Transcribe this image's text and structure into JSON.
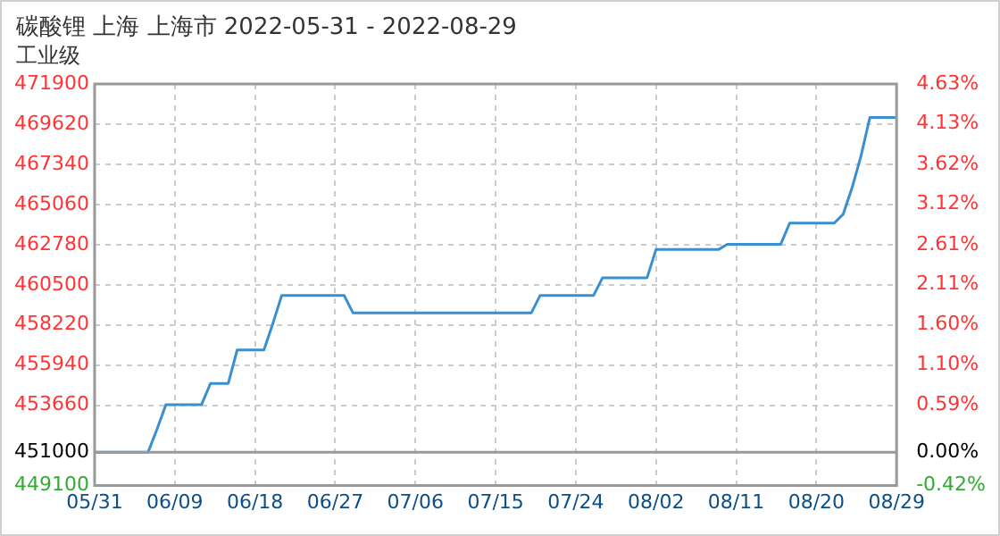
{
  "chart_data": {
    "type": "line",
    "title": "碳酸锂 上海 上海市 2022-05-31 - 2022-08-29",
    "subtitle": "工业级",
    "x": [
      "2022-05-31",
      "2022-06-06",
      "2022-06-07",
      "2022-06-08",
      "2022-06-12",
      "2022-06-13",
      "2022-06-15",
      "2022-06-16",
      "2022-06-19",
      "2022-06-20",
      "2022-06-21",
      "2022-06-28",
      "2022-06-29",
      "2022-07-19",
      "2022-07-20",
      "2022-07-26",
      "2022-07-27",
      "2022-08-01",
      "2022-08-02",
      "2022-08-09",
      "2022-08-10",
      "2022-08-16",
      "2022-08-17",
      "2022-08-22",
      "2022-08-23",
      "2022-08-24",
      "2022-08-25",
      "2022-08-26",
      "2022-08-29"
    ],
    "series": [
      {
        "color": "#3a8fd0",
        "values": [
          451000,
          451000,
          452300,
          453700,
          453700,
          454900,
          454900,
          456800,
          456800,
          458300,
          459900,
          459900,
          458900,
          458900,
          459900,
          459900,
          460900,
          460900,
          462500,
          462500,
          462800,
          462800,
          464000,
          464000,
          464500,
          466000,
          467800,
          470000,
          470000
        ]
      }
    ],
    "xlim": [
      "2022-05-31",
      "2022-08-29"
    ],
    "xticks": [
      {
        "value": "2022-05-31",
        "label": "05/31"
      },
      {
        "value": "2022-06-09",
        "label": "06/09"
      },
      {
        "value": "2022-06-18",
        "label": "06/18"
      },
      {
        "value": "2022-06-27",
        "label": "06/27"
      },
      {
        "value": "2022-07-06",
        "label": "07/06"
      },
      {
        "value": "2022-07-15",
        "label": "07/15"
      },
      {
        "value": "2022-07-24",
        "label": "07/24"
      },
      {
        "value": "2022-08-02",
        "label": "08/02"
      },
      {
        "value": "2022-08-11",
        "label": "08/11"
      },
      {
        "value": "2022-08-20",
        "label": "08/20"
      },
      {
        "value": "2022-08-29",
        "label": "08/29"
      }
    ],
    "ylim": [
      449100,
      471900
    ],
    "yticks": [
      449100,
      451000,
      453660,
      455940,
      458220,
      460500,
      462780,
      465060,
      467340,
      469620,
      471900
    ],
    "y2lim": [
      -0.42,
      4.63
    ],
    "y2ticks": [
      {
        "value": -0.42,
        "label": "-0.42%"
      },
      {
        "value": 0,
        "label": "0.00%"
      },
      {
        "value": 0.59,
        "label": "0.59%"
      },
      {
        "value": 1.1,
        "label": "1.10%"
      },
      {
        "value": 1.6,
        "label": "1.60%"
      },
      {
        "value": 2.11,
        "label": "2.11%"
      },
      {
        "value": 2.61,
        "label": "2.61%"
      },
      {
        "value": 3.12,
        "label": "3.12%"
      },
      {
        "value": 3.62,
        "label": "3.62%"
      },
      {
        "value": 4.13,
        "label": "4.13%"
      },
      {
        "value": 4.63,
        "label": "4.63%"
      }
    ],
    "ref_lines": [
      {
        "axis": "y",
        "value": 451000,
        "color": "#999999"
      }
    ],
    "grid": true,
    "legend": false,
    "marker": "none",
    "line_style": "solid"
  }
}
